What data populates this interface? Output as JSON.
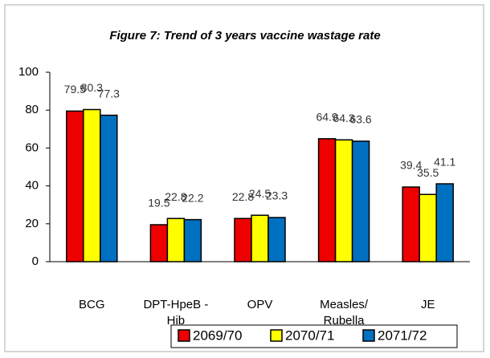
{
  "chart_data": {
    "type": "bar",
    "title": "Figure 7: Trend of 3 years vaccine wastage rate",
    "categories": [
      "BCG",
      "DPT-HpeB - Hib",
      "OPV",
      "Measles/ Rubella",
      "JE"
    ],
    "series": [
      {
        "name": "2069/70",
        "color": "#ee0000",
        "values": [
          79.5,
          19.5,
          22.8,
          64.9,
          39.4
        ]
      },
      {
        "name": "2070/71",
        "color": "#ffff00",
        "values": [
          80.3,
          22.8,
          24.5,
          64.3,
          35.5
        ]
      },
      {
        "name": "2071/72",
        "color": "#0070c0",
        "values": [
          77.3,
          22.2,
          23.3,
          63.6,
          41.1
        ]
      }
    ],
    "ylim": [
      0,
      100
    ],
    "yticks": [
      0,
      20,
      40,
      60,
      80,
      100
    ],
    "grid": false,
    "legend": "bottom"
  }
}
